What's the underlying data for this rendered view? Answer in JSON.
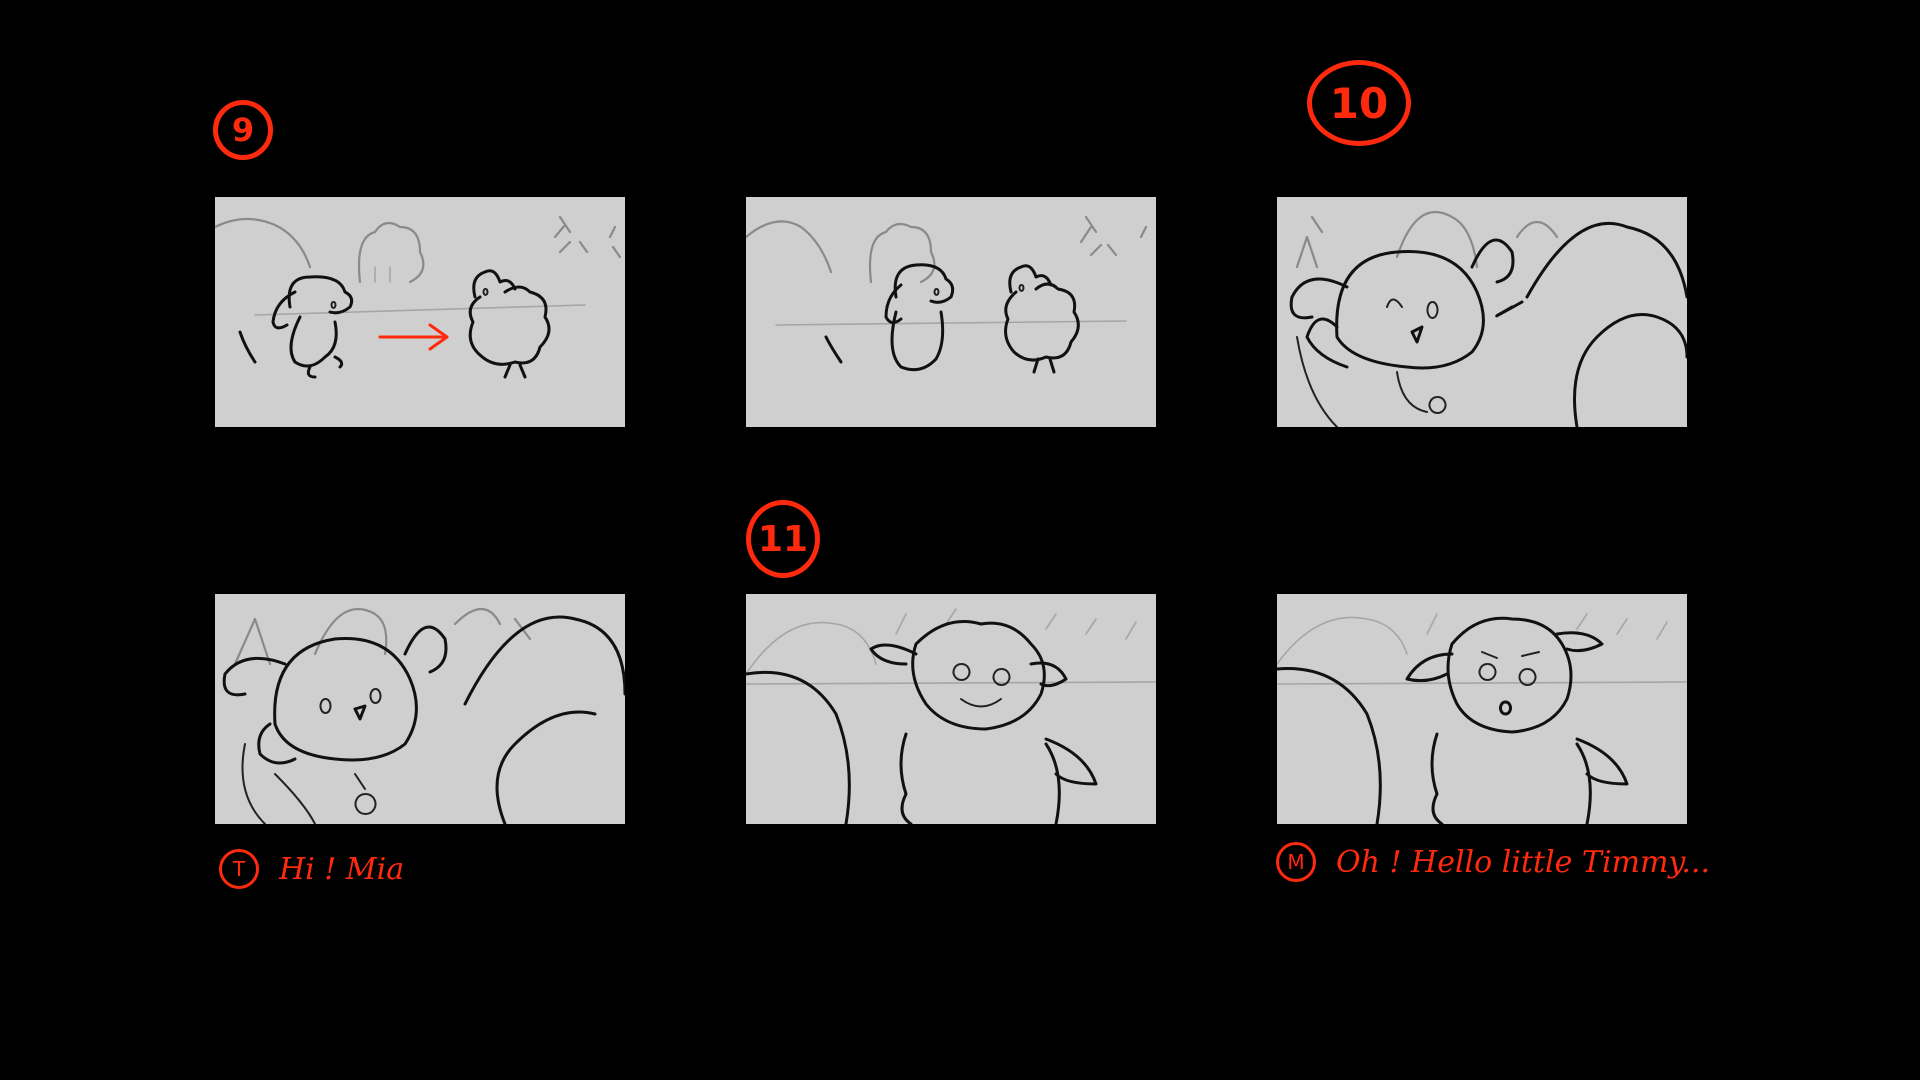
{
  "storyboard": {
    "shots": [
      {
        "number": "9"
      },
      {
        "number": "10"
      },
      {
        "number": "11"
      }
    ],
    "dialogue": [
      {
        "speaker": "T",
        "line": "Hi ! Mia"
      },
      {
        "speaker": "M",
        "line": "Oh ! Hello little Timmy..."
      }
    ]
  },
  "colors": {
    "background": "#000000",
    "panel": "#cfcfcf",
    "annotation": "#ff2a0d",
    "line": "#111111"
  }
}
